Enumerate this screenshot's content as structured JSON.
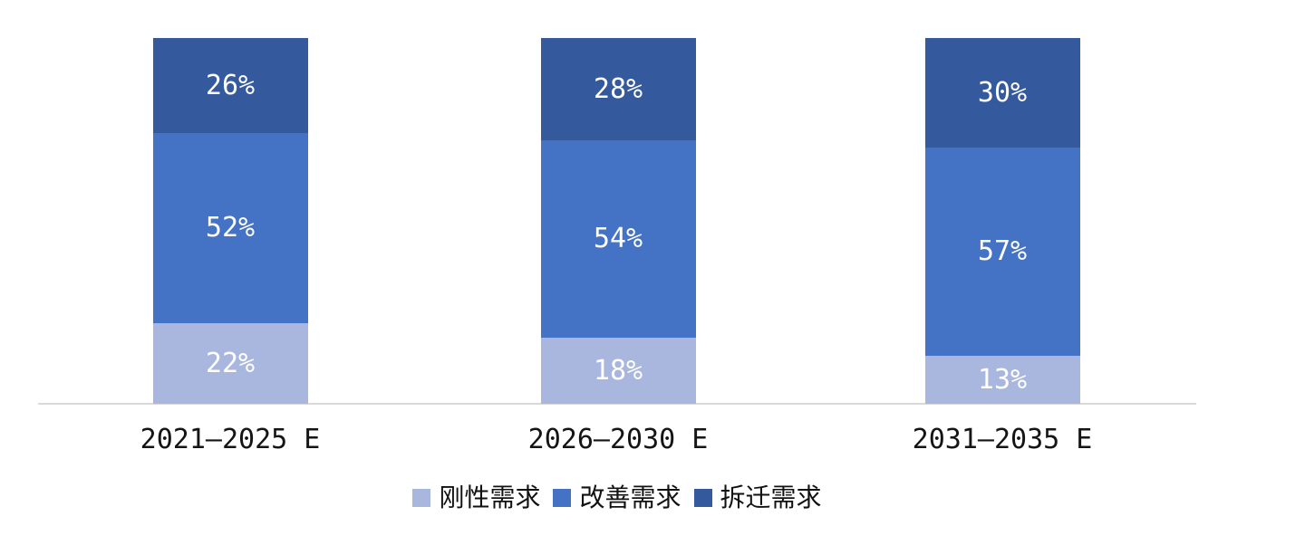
{
  "chart_data": {
    "type": "bar",
    "variant": "stacked-percent",
    "title": "",
    "xlabel": "",
    "ylabel": "",
    "categories": [
      "2021—2025 E",
      "2026—2030 E",
      "2031—2035 E"
    ],
    "series": [
      {
        "name": "刚性需求",
        "color": "#A9B6DD",
        "values": [
          22,
          18,
          13
        ],
        "labels": [
          "22%",
          "18%",
          "13%"
        ]
      },
      {
        "name": "改善需求",
        "color": "#4472C4",
        "values": [
          52,
          54,
          57
        ],
        "labels": [
          "52%",
          "54%",
          "57%"
        ]
      },
      {
        "name": "拆迁需求",
        "color": "#345A9D",
        "values": [
          26,
          28,
          30
        ],
        "labels": [
          "26%",
          "28%",
          "30%"
        ]
      }
    ],
    "ylim": [
      0,
      100
    ],
    "grid": false,
    "legend_position": "bottom",
    "axis_line_color": "#D9D9D9",
    "data_label_color": "#FFFFFF"
  }
}
